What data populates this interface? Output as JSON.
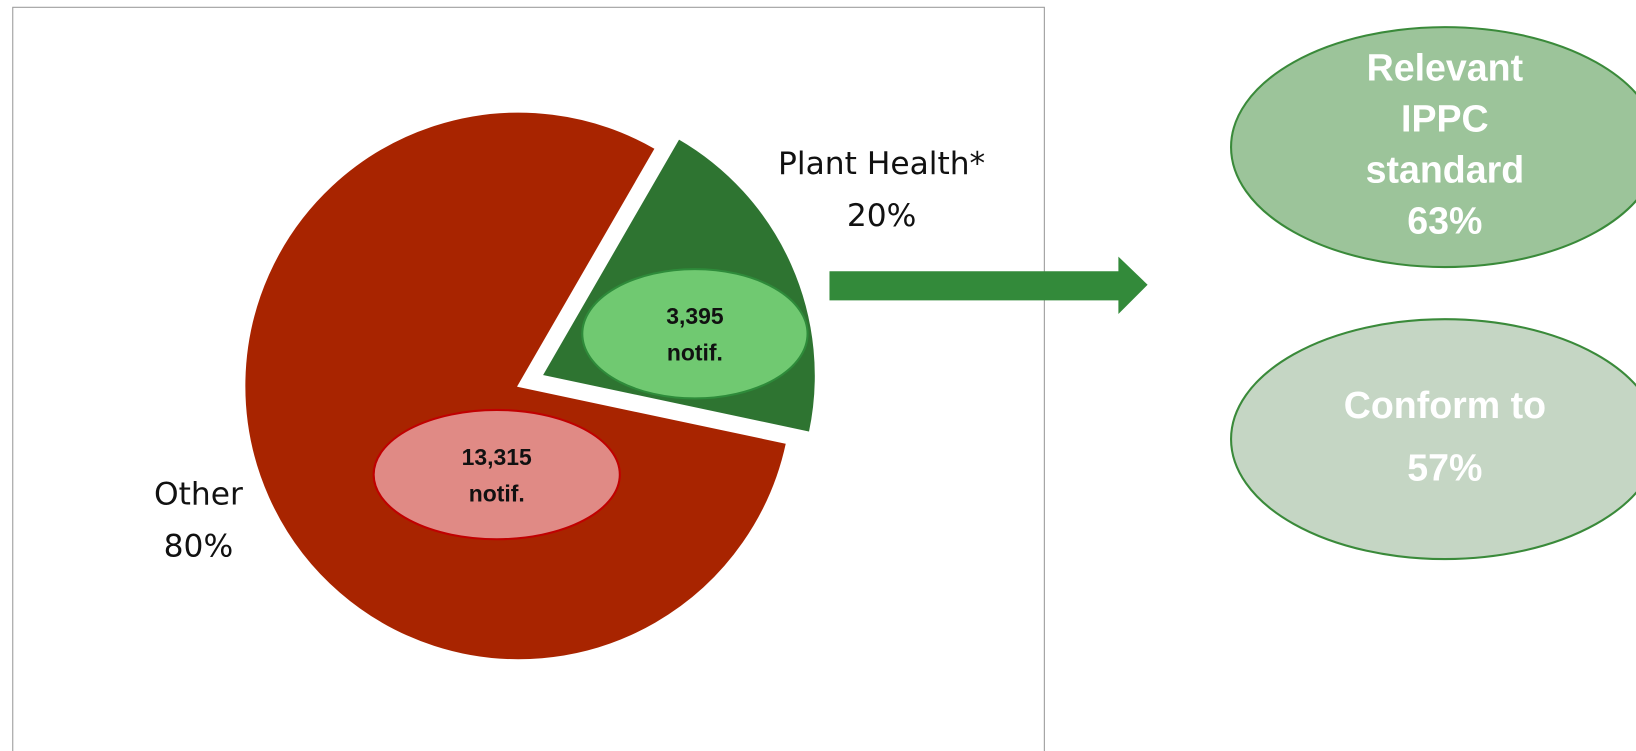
{
  "chart_data": {
    "type": "pie",
    "categories": [
      "Other",
      "Plant Health*"
    ],
    "values": [
      80,
      20
    ],
    "value_labels": [
      "80%",
      "20%"
    ],
    "colors": [
      "#a82400",
      "#2e7431"
    ],
    "counts": [
      13315,
      3395
    ],
    "count_labels": [
      "13,315",
      "3,395"
    ],
    "count_unit": "notif.",
    "annotations": [
      {
        "lines": [
          "Relevant",
          "IPPC",
          "standard"
        ],
        "value": 63,
        "label": "63%",
        "color": "#9cc49a"
      },
      {
        "lines": [
          "Conform to"
        ],
        "value": 57,
        "label": "57%",
        "color": "#c5d6c4"
      }
    ]
  }
}
